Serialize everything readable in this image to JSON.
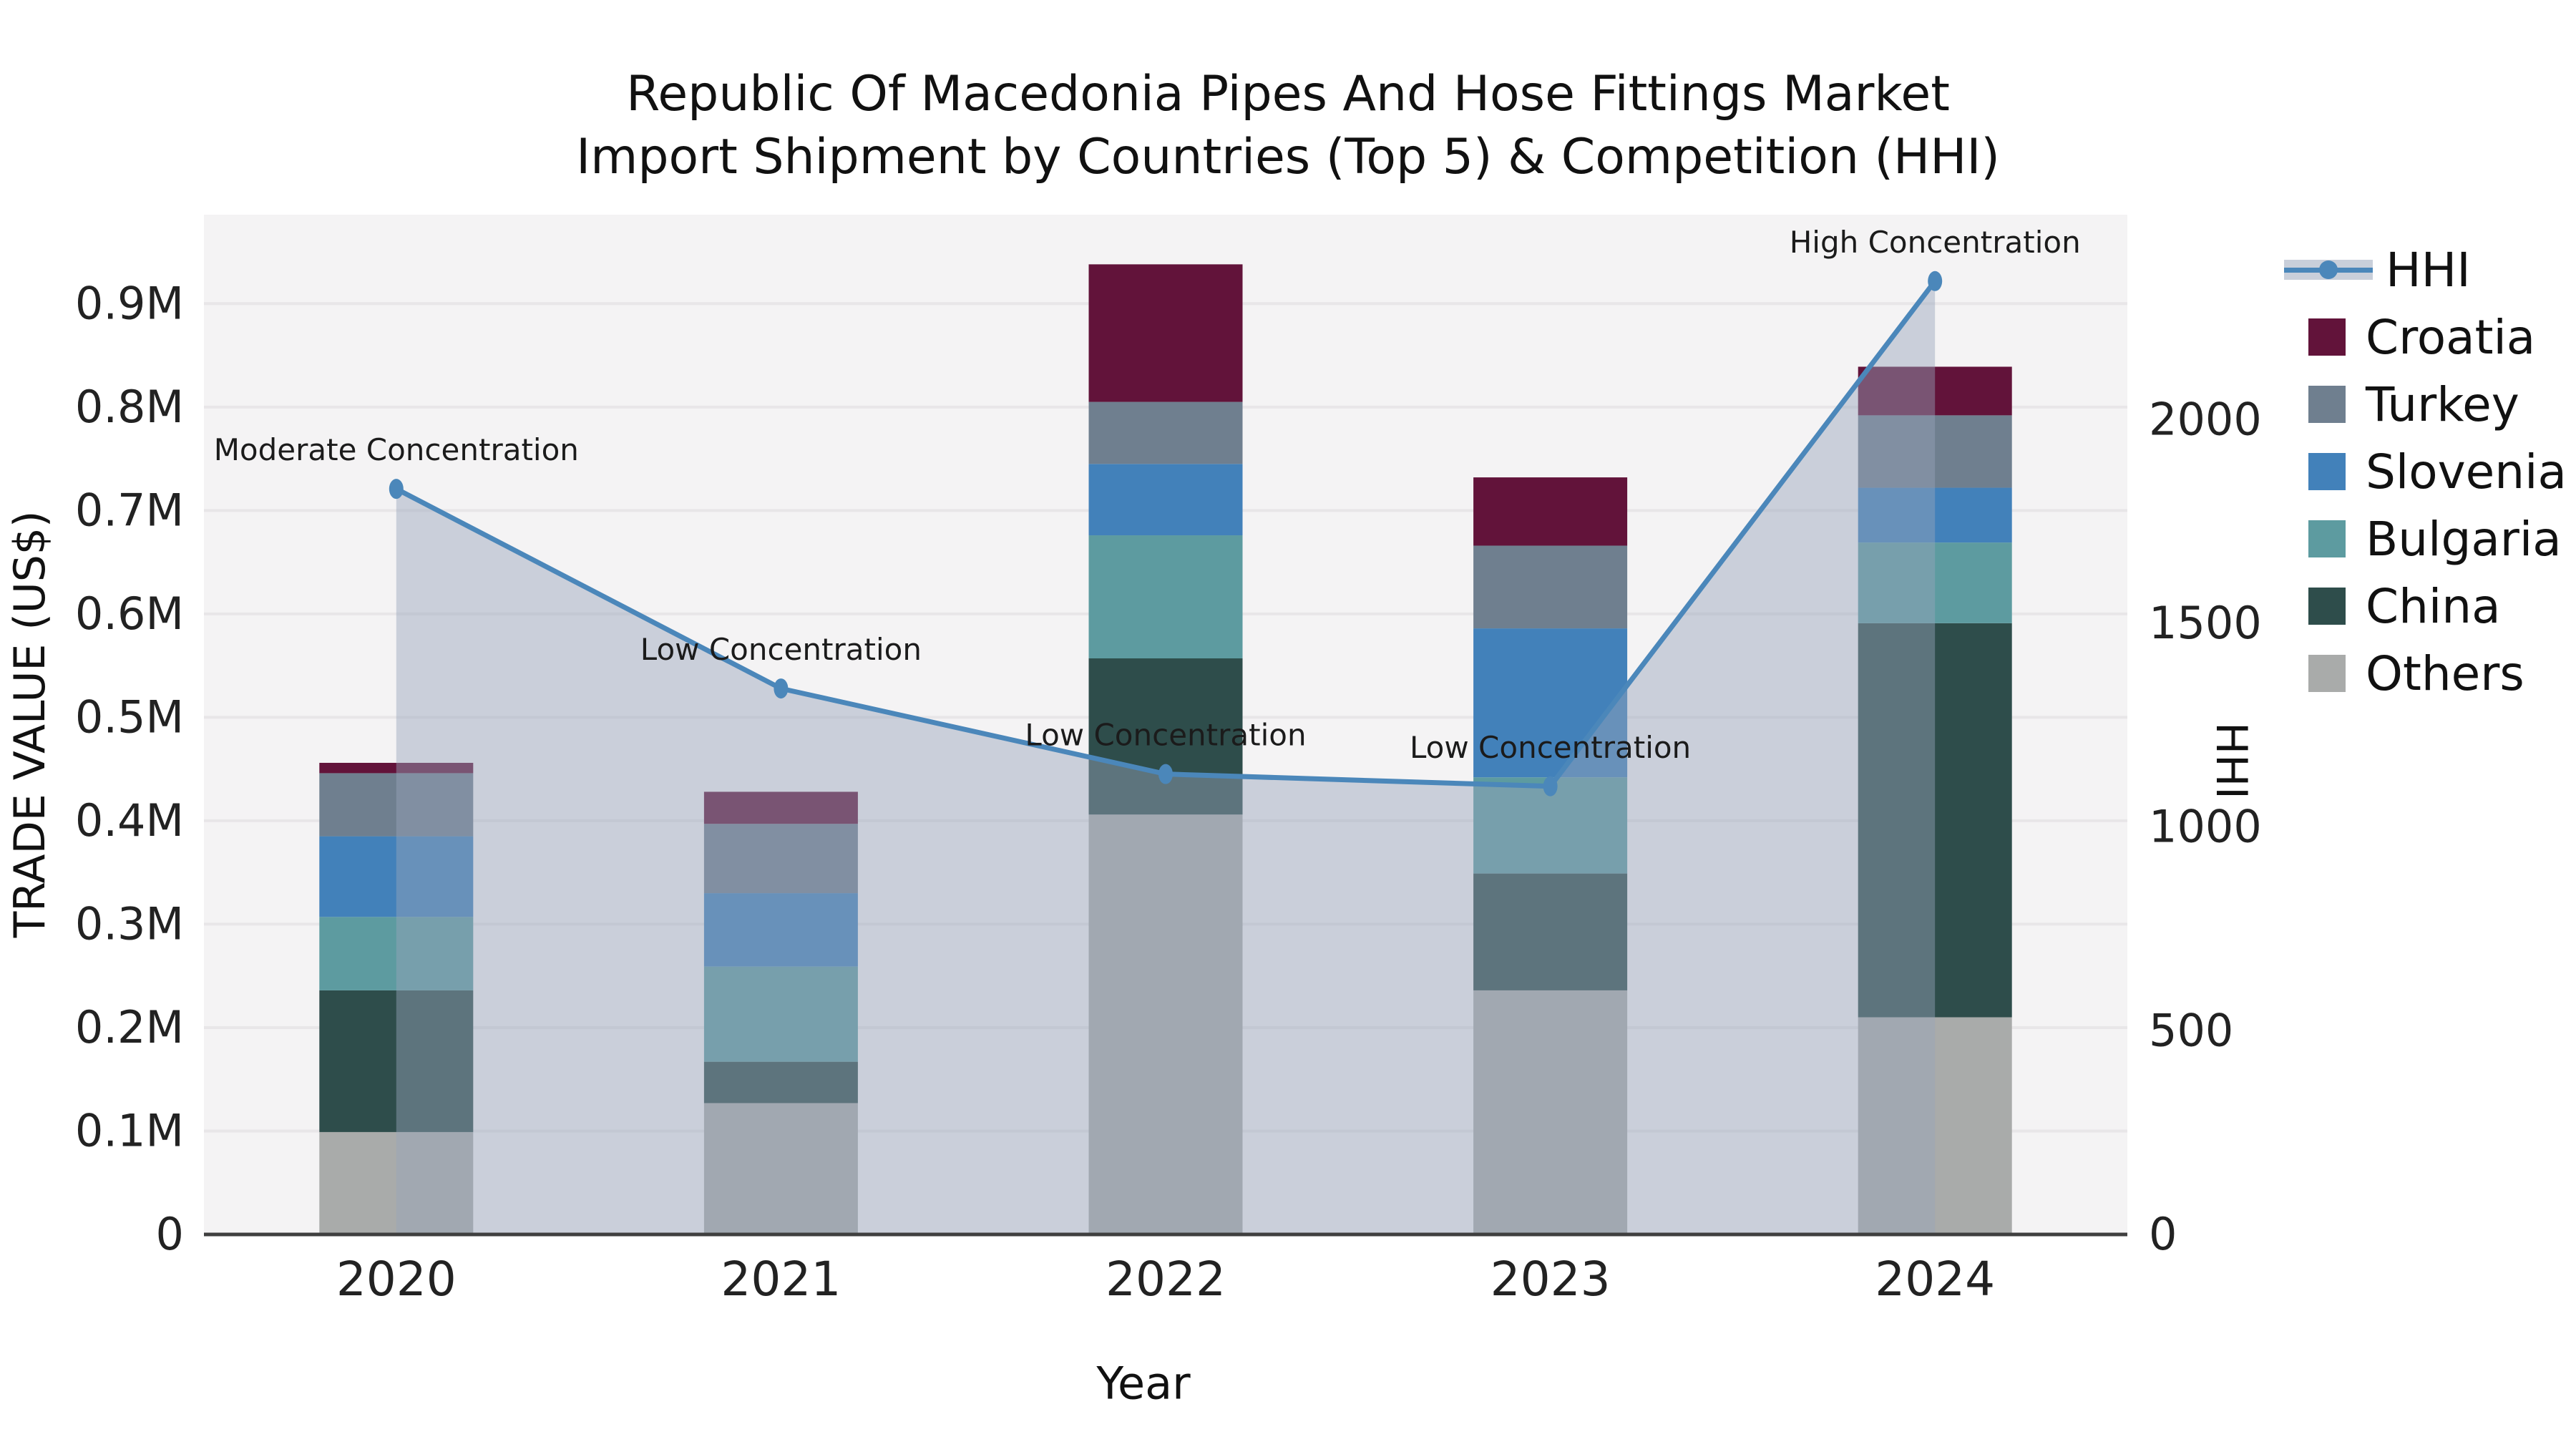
{
  "title": {
    "line1": "Republic Of Macedonia Pipes And Hose Fittings Market",
    "line2": "Import Shipment by Countries (Top 5) & Competition (HHI)"
  },
  "axes": {
    "x_label": "Year",
    "y_left_label": "TRADE VALUE (US$)",
    "y_right_label": "HHI",
    "y_left_ticks": [
      "0",
      "0.1M",
      "0.2M",
      "0.3M",
      "0.4M",
      "0.5M",
      "0.6M",
      "0.7M",
      "0.8M",
      "0.9M"
    ],
    "y_right_ticks": [
      "0",
      "500",
      "1000",
      "1500",
      "2000"
    ],
    "x_ticks": [
      "2020",
      "2021",
      "2022",
      "2023",
      "2024"
    ]
  },
  "legend": [
    {
      "label": "HHI",
      "type": "line"
    },
    {
      "label": "Croatia",
      "type": "swatch"
    },
    {
      "label": "Turkey",
      "type": "swatch"
    },
    {
      "label": "Slovenia",
      "type": "swatch"
    },
    {
      "label": "Bulgaria",
      "type": "swatch"
    },
    {
      "label": "China",
      "type": "swatch"
    },
    {
      "label": "Others",
      "type": "swatch"
    }
  ],
  "colors": {
    "Croatia": "#62133a",
    "Turkey": "#6f7f8f",
    "Slovenia": "#4281ba",
    "Bulgaria": "#5d9ba0",
    "China": "#2e4d4b",
    "Others": "#a9abaa",
    "hhi_line": "#4b87ba",
    "hhi_area": "rgba(150,163,186,0.45)",
    "plot_bg": "#f4f3f4",
    "grid": "#e8e6e8",
    "axis_line": "#3f3f3f",
    "text": "#1a1a1a"
  },
  "chart_data": {
    "type": "bar",
    "stacked": true,
    "title": "Republic Of Macedonia Pipes And Hose Fittings Market — Import Shipment by Countries (Top 5) & Competition (HHI)",
    "xlabel": "Year",
    "ylabel": "TRADE VALUE (US$)",
    "ylabel_right": "HHI",
    "legend_position": "right",
    "grid": true,
    "categories": [
      "2020",
      "2021",
      "2022",
      "2023",
      "2024"
    ],
    "unit": "US$",
    "series": [
      {
        "name": "Others",
        "values": [
          99000,
          127000,
          406000,
          236000,
          210000
        ]
      },
      {
        "name": "China",
        "values": [
          137000,
          40000,
          151000,
          113000,
          381000
        ]
      },
      {
        "name": "Bulgaria",
        "values": [
          71000,
          92000,
          119000,
          93000,
          78000
        ]
      },
      {
        "name": "Slovenia",
        "values": [
          78000,
          71000,
          69000,
          144000,
          53000
        ]
      },
      {
        "name": "Turkey",
        "values": [
          61000,
          67000,
          60000,
          80000,
          70000
        ]
      },
      {
        "name": "Croatia",
        "values": [
          10000,
          31000,
          133000,
          66000,
          47000
        ]
      }
    ],
    "line_series": {
      "name": "HHI",
      "axis": "right",
      "values": [
        1830,
        1340,
        1130,
        1100,
        2340
      ]
    },
    "annotations": [
      {
        "text": "Moderate Concentration",
        "year": "2020"
      },
      {
        "text": "Low Concentration",
        "year": "2021"
      },
      {
        "text": "Low Concentration",
        "year": "2022"
      },
      {
        "text": "Low Concentration",
        "year": "2023"
      },
      {
        "text": "High Concentration",
        "year": "2024"
      }
    ],
    "ylim_left": [
      0,
      986000
    ],
    "ylim_right": [
      0,
      2503
    ]
  }
}
